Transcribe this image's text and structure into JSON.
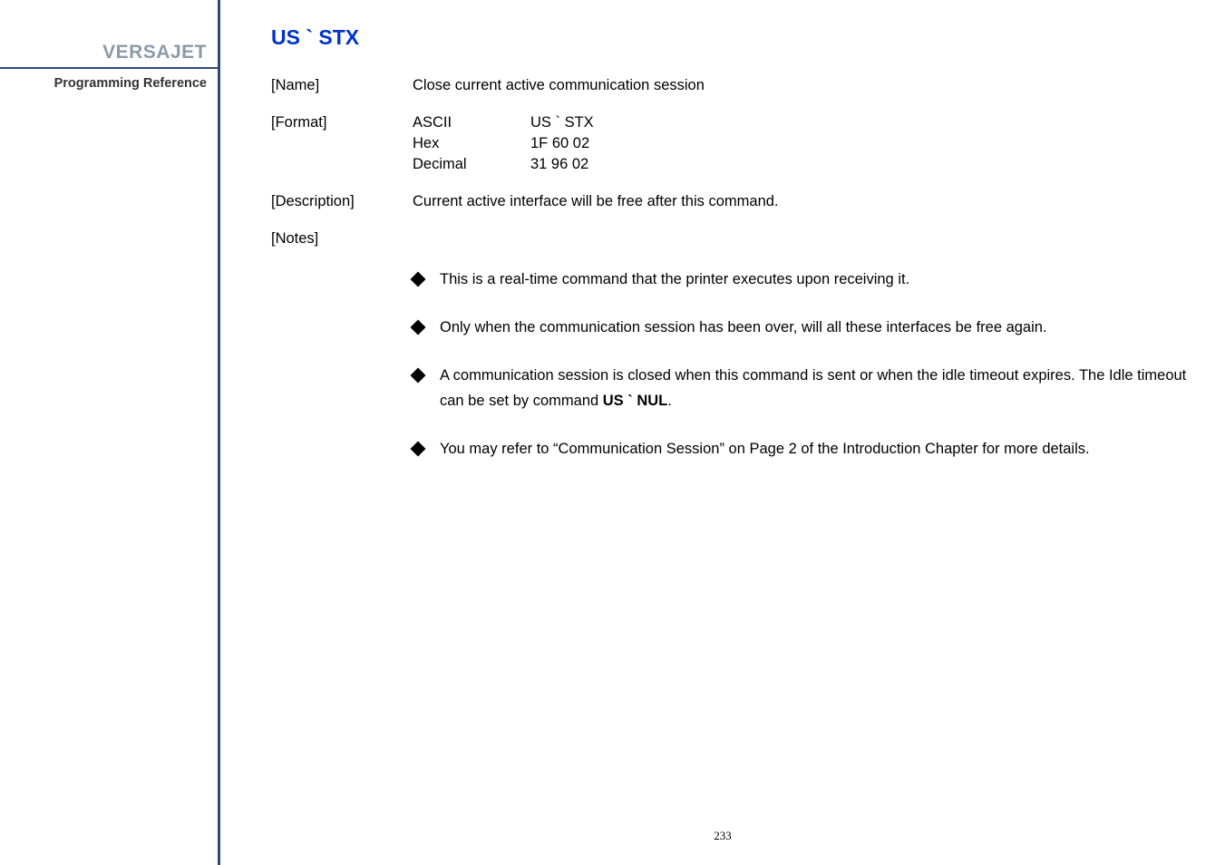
{
  "sidebar": {
    "brand": "VERSAJET",
    "subtitle": "Programming Reference"
  },
  "command": {
    "title": "US ` STX"
  },
  "fields": {
    "name_label": "[Name]",
    "name_value": "Close current active communication session",
    "format_label": "[Format]",
    "format": {
      "ascii_label": "ASCII",
      "ascii_value": "US ` STX",
      "hex_label": "Hex",
      "hex_value": "1F 60 02",
      "decimal_label": "Decimal",
      "decimal_value": "31 96 02"
    },
    "description_label": "[Description]",
    "description_value": "Current active interface will be free after this command.",
    "notes_label": "[Notes]"
  },
  "notes": {
    "n1": "This is a real-time command that the printer executes upon receiving it.",
    "n2": "Only when the communication session has been over, will all these interfaces be free again.",
    "n3_a": "A communication session is closed when this command is sent or when the idle timeout expires. The Idle timeout can be set by command ",
    "n3_b": "US ` NUL",
    "n3_c": ".",
    "n4": "You may refer to “Communication Session” on Page 2 of the Introduction Chapter for more details."
  },
  "page_number": "233"
}
